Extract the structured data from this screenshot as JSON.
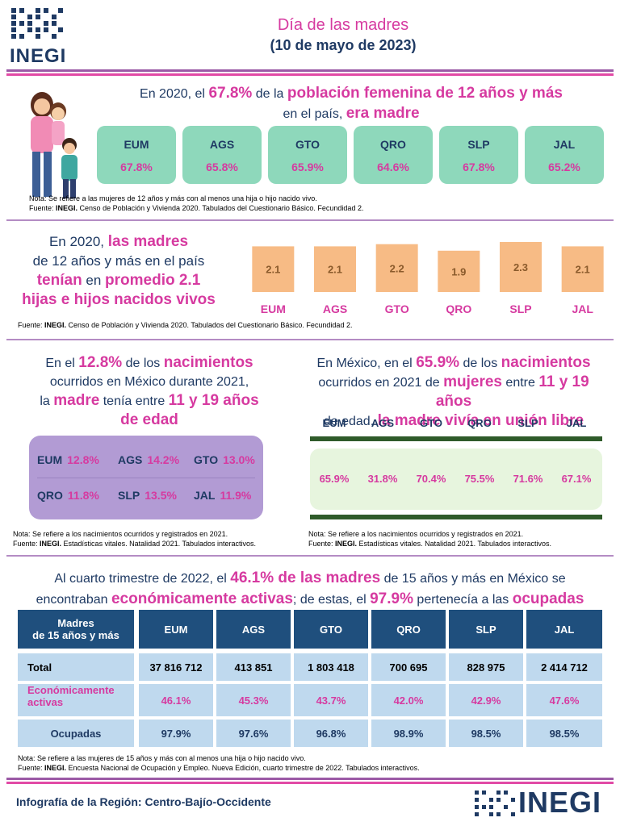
{
  "header": {
    "logo_text": "INEGI",
    "title": "Día de las madres",
    "subtitle": "(10 de mayo de 2023)"
  },
  "section1": {
    "p1": "En 2020, el ",
    "p2": "67.8%",
    "p3": " de la ",
    "p4": "población femenina de 12 años y más",
    "p5": "en el país, ",
    "p6": "era madre",
    "states": [
      {
        "state": "EUM",
        "value": "67.8%"
      },
      {
        "state": "AGS",
        "value": "65.8%"
      },
      {
        "state": "GTO",
        "value": "65.9%"
      },
      {
        "state": "QRO",
        "value": "64.6%"
      },
      {
        "state": "SLP",
        "value": "67.8%"
      },
      {
        "state": "JAL",
        "value": "65.2%"
      }
    ],
    "note": "Nota: Se refiere a las mujeres de 12 años y más con al menos una hija o hijo nacido vivo.",
    "source_lead": "Fuente: ",
    "source_org": "INEGI.",
    "source_rest": " Censo de Población y Vivienda 2020. Tabulados del Cuestionario Básico. Fecundidad 2."
  },
  "section2": {
    "l1a": "En 2020, ",
    "l1b": "las madres",
    "l2": "de 12 años y más en el país",
    "l3a": "tenían",
    "l3b": " en ",
    "l3c": "promedio 2.1",
    "l4": "hijas e hijos nacidos vivos",
    "source_lead": "Fuente: ",
    "source_org": "INEGI.",
    "source_rest": " Censo de Población y Vivienda 2020. Tabulados del Cuestionario Básico. Fecundidad 2."
  },
  "chart_data": {
    "type": "bar",
    "title": "",
    "categories": [
      "EUM",
      "AGS",
      "GTO",
      "QRO",
      "SLP",
      "JAL"
    ],
    "values": [
      2.1,
      2.1,
      2.2,
      1.9,
      2.3,
      2.1
    ],
    "value_labels": [
      "2.1",
      "2.1",
      "2.2",
      "1.9",
      "2.3",
      "2.1"
    ],
    "xlabel": "",
    "ylabel": "",
    "ylim": [
      0,
      2.3
    ],
    "bar_color": "#f7bb85",
    "label_color": "#8a5a2b",
    "category_color": "#d63aa0"
  },
  "section3_left": {
    "l1a": "En el ",
    "l1b": "12.8%",
    "l1c": " de los ",
    "l1d": "nacimientos",
    "l2": "ocurridos en México durante 2021,",
    "l3a": "la ",
    "l3b": "madre",
    "l3c": " tenía entre ",
    "l3d": "11 y 19 años",
    "l4": "de edad",
    "pairs": [
      {
        "state": "EUM",
        "value": "12.8%"
      },
      {
        "state": "AGS",
        "value": "14.2%"
      },
      {
        "state": "GTO",
        "value": "13.0%"
      },
      {
        "state": "QRO",
        "value": "11.8%"
      },
      {
        "state": "SLP",
        "value": "13.5%"
      },
      {
        "state": "JAL",
        "value": "11.9%"
      }
    ],
    "note": "Nota: Se refiere a los nacimientos ocurridos y registrados en 2021.",
    "source_lead": "Fuente: ",
    "source_org": "INEGI.",
    "source_rest": " Estadísticas vitales. Natalidad 2021. Tabulados interactivos."
  },
  "section3_right": {
    "l1a": "En México, en el ",
    "l1b": "65.9%",
    "l1c": " de los ",
    "l1d": "nacimientos",
    "l2a": "ocurridos en 2021 de ",
    "l2b": "mujeres",
    "l2c": " entre ",
    "l2d": "11 y 19 años",
    "l3a": "de edad, ",
    "l3b": "la madre vivía en unión libre",
    "states": [
      "EUM",
      "AGS",
      "GTO",
      "QRO",
      "SLP",
      "JAL"
    ],
    "values": [
      "65.9%",
      "31.8%",
      "70.4%",
      "75.5%",
      "71.6%",
      "67.1%"
    ],
    "note": "Nota: Se refiere a los nacimientos ocurridos y registrados en 2021.",
    "source_lead": "Fuente: ",
    "source_org": "INEGI.",
    "source_rest": " Estadísticas vitales. Natalidad 2021. Tabulados interactivos."
  },
  "section4": {
    "l1a": "Al cuarto trimestre de 2022, el ",
    "l1b": "46.1% de las madres",
    "l1c": " de 15 años y más en México se",
    "l2a": "encontraban ",
    "l2b": "económicamente activas",
    "l2c": "; de estas, el ",
    "l2d": "97.9%",
    "l2e": " pertenecía a las ",
    "l2f": "ocupadas",
    "table": {
      "corner_line1": "Madres",
      "corner_line2": "de 15 años y más",
      "headers": [
        "EUM",
        "AGS",
        "GTO",
        "QRO",
        "SLP",
        "JAL"
      ],
      "rows": [
        {
          "label": "Total",
          "values": [
            "37 816 712",
            "413 851",
            "1 803 418",
            "700 695",
            "828 975",
            "2 414 712"
          ]
        },
        {
          "label_line1": "Económicamente",
          "label_line2": "activas",
          "values": [
            "46.1%",
            "45.3%",
            "43.7%",
            "42.0%",
            "42.9%",
            "47.6%"
          ]
        },
        {
          "label": "Ocupadas",
          "values": [
            "97.9%",
            "97.6%",
            "96.8%",
            "98.9%",
            "98.5%",
            "98.5%"
          ]
        }
      ]
    },
    "note": "Nota: Se refiere a las mujeres de 15 años y más con al menos una hija o hijo nacido vivo.",
    "source_lead": "Fuente: ",
    "source_org": "INEGI.",
    "source_rest": " Encuesta Nacional de Ocupación y Empleo. Nueva Edición, cuarto trimestre de 2022. Tabulados interactivos."
  },
  "footer": {
    "text": "Infografía de la Región: Centro-Bajío-Occidente",
    "logo_text": "INEGI"
  }
}
